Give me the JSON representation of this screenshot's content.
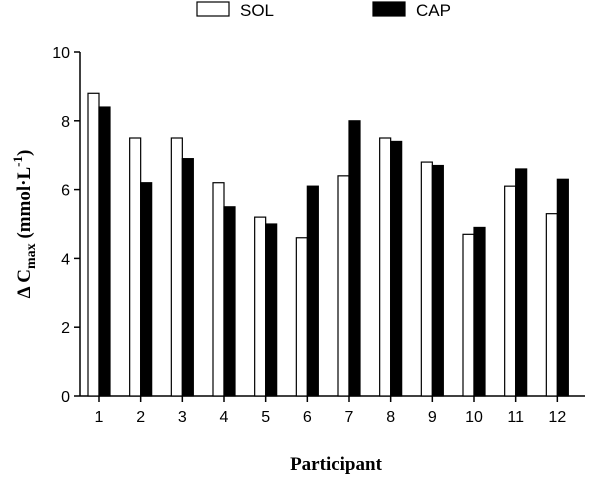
{
  "chart_data": {
    "type": "bar",
    "xlabel": "Participant",
    "ylabel": {
      "prefix": "Δ C",
      "subscript": "max",
      "unit_open": " (mmol·L",
      "superscript": "-1",
      "unit_close": ")"
    },
    "ylim": [
      0,
      10
    ],
    "yticks": [
      "0",
      "2",
      "4",
      "6",
      "8",
      "10"
    ],
    "categories": [
      "1",
      "2",
      "3",
      "4",
      "5",
      "6",
      "7",
      "8",
      "9",
      "10",
      "11",
      "12"
    ],
    "legend_placement": "top-center",
    "grid": false,
    "series": [
      {
        "name": "SOL",
        "color": "#ffffff",
        "values": [
          8.8,
          7.5,
          7.5,
          6.2,
          5.2,
          4.6,
          6.4,
          7.5,
          6.8,
          4.7,
          6.1,
          5.3
        ]
      },
      {
        "name": "CAP",
        "color": "#000000",
        "values": [
          8.4,
          6.2,
          6.9,
          5.5,
          5.0,
          6.1,
          8.0,
          7.4,
          6.7,
          4.9,
          6.6,
          6.3
        ]
      }
    ]
  }
}
